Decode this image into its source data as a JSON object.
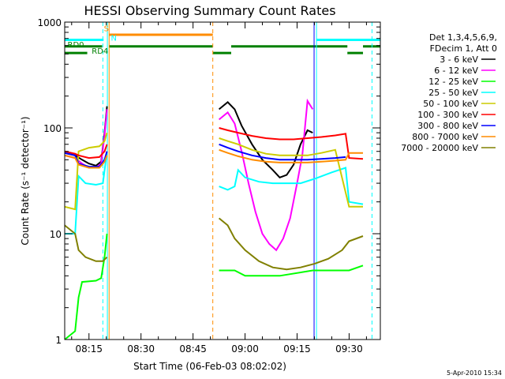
{
  "chart_data": {
    "type": "line",
    "title": "HESSI Observing Summary Count Rates",
    "xlabel": "Start Time (06-Feb-03 08:02:02)",
    "ylabel": "Count Rate (s⁻¹ detector⁻¹)",
    "yscale": "log",
    "ylim": [
      1,
      1000
    ],
    "xlim_minutes": [
      8.0,
      99.0
    ],
    "xticks": [
      {
        "minute": 15,
        "label": "08:15"
      },
      {
        "minute": 30,
        "label": "08:30"
      },
      {
        "minute": 45,
        "label": "08:45"
      },
      {
        "minute": 60,
        "label": "09:00"
      },
      {
        "minute": 75,
        "label": "09:15"
      },
      {
        "minute": 90,
        "label": "09:30"
      }
    ],
    "yticks": [
      {
        "value": 1,
        "label": "1"
      },
      {
        "value": 10,
        "label": "10"
      },
      {
        "value": 100,
        "label": "100"
      },
      {
        "value": 1000,
        "label": "1000"
      }
    ],
    "legend_header": [
      "Det 1,3,4,5,6,9,",
      "FDecim 1, Att 0"
    ],
    "legend_position": "right",
    "gaps_minutes": [
      [
        20.5,
        52.5
      ]
    ],
    "series": [
      {
        "name": "3 - 6 keV",
        "color": "#000000",
        "points": [
          [
            8,
            58
          ],
          [
            11,
            55
          ],
          [
            13,
            50
          ],
          [
            15,
            46
          ],
          [
            17,
            44
          ],
          [
            18.5,
            48
          ],
          [
            19.5,
            90
          ],
          [
            20.2,
            160
          ],
          [
            52.5,
            150
          ],
          [
            55,
            175
          ],
          [
            57,
            150
          ],
          [
            59,
            105
          ],
          [
            62,
            70
          ],
          [
            65,
            50
          ],
          [
            68,
            40
          ],
          [
            70,
            34
          ],
          [
            72,
            36
          ],
          [
            74,
            45
          ],
          [
            76,
            70
          ],
          [
            78,
            95
          ],
          [
            79.5,
            90
          ]
        ]
      },
      {
        "name": "6 - 12 keV",
        "color": "#ff00ff",
        "points": [
          [
            8,
            55
          ],
          [
            11,
            52
          ],
          [
            13,
            46
          ],
          [
            15,
            42
          ],
          [
            17,
            42
          ],
          [
            18.5,
            46
          ],
          [
            19.5,
            85
          ],
          [
            20.2,
            150
          ],
          [
            52.5,
            120
          ],
          [
            55,
            140
          ],
          [
            57,
            110
          ],
          [
            59,
            60
          ],
          [
            61,
            30
          ],
          [
            63,
            16
          ],
          [
            65,
            10
          ],
          [
            67,
            8
          ],
          [
            69,
            7
          ],
          [
            71,
            9
          ],
          [
            73,
            14
          ],
          [
            75,
            30
          ],
          [
            76.5,
            55
          ],
          [
            78,
            180
          ],
          [
            79.5,
            150
          ]
        ]
      },
      {
        "name": "12 - 25 keV",
        "color": "#00ff00",
        "points": [
          [
            8,
            1
          ],
          [
            11,
            1.2
          ],
          [
            12,
            2.5
          ],
          [
            13,
            3.5
          ],
          [
            17,
            3.6
          ],
          [
            18.5,
            3.8
          ],
          [
            19.5,
            6
          ],
          [
            20.2,
            10
          ],
          [
            52.5,
            4.5
          ],
          [
            57,
            4.5
          ],
          [
            60,
            4
          ],
          [
            70,
            4
          ],
          [
            79.5,
            4.5
          ],
          [
            90,
            4.5
          ],
          [
            94,
            5
          ]
        ]
      },
      {
        "name": "25 - 50 keV",
        "color": "#00ffff",
        "points": [
          [
            8,
            10
          ],
          [
            11,
            10
          ],
          [
            12,
            35
          ],
          [
            14,
            30
          ],
          [
            17,
            29
          ],
          [
            19,
            30
          ],
          [
            20.2,
            60
          ],
          [
            52.5,
            28
          ],
          [
            55,
            26
          ],
          [
            57,
            28
          ],
          [
            58,
            40
          ],
          [
            60,
            34
          ],
          [
            64,
            31
          ],
          [
            68,
            30
          ],
          [
            72,
            30
          ],
          [
            76,
            30
          ],
          [
            80,
            33
          ],
          [
            85,
            38
          ],
          [
            89,
            42
          ],
          [
            90,
            20
          ],
          [
            94,
            19
          ]
        ]
      },
      {
        "name": "50 - 100 keV",
        "color": "#cccc00",
        "points": [
          [
            8,
            18
          ],
          [
            11,
            17
          ],
          [
            12,
            60
          ],
          [
            15,
            65
          ],
          [
            18,
            67
          ],
          [
            19.5,
            75
          ],
          [
            20.2,
            90
          ],
          [
            52.5,
            80
          ],
          [
            55,
            75
          ],
          [
            58,
            70
          ],
          [
            62,
            62
          ],
          [
            66,
            57
          ],
          [
            70,
            55
          ],
          [
            74,
            55
          ],
          [
            78,
            55
          ],
          [
            82,
            58
          ],
          [
            86,
            62
          ],
          [
            90,
            18
          ],
          [
            94,
            18
          ]
        ]
      },
      {
        "name": "100 - 300 keV",
        "color": "#ff0000",
        "points": [
          [
            8,
            60
          ],
          [
            11,
            57
          ],
          [
            12,
            55
          ],
          [
            15,
            52
          ],
          [
            18,
            53
          ],
          [
            19.5,
            60
          ],
          [
            20.2,
            70
          ],
          [
            52.5,
            100
          ],
          [
            55,
            95
          ],
          [
            58,
            90
          ],
          [
            62,
            84
          ],
          [
            66,
            80
          ],
          [
            70,
            78
          ],
          [
            74,
            78
          ],
          [
            78,
            80
          ],
          [
            82,
            82
          ],
          [
            86,
            85
          ],
          [
            89,
            88
          ],
          [
            90,
            52
          ],
          [
            94,
            51
          ]
        ]
      },
      {
        "name": "300 - 800 keV",
        "color": "#0000ff",
        "points": [
          [
            8,
            58
          ],
          [
            11,
            55
          ],
          [
            12,
            46
          ],
          [
            15,
            43
          ],
          [
            18,
            43
          ],
          [
            19.5,
            50
          ],
          [
            20.2,
            60
          ],
          [
            52.5,
            70
          ],
          [
            55,
            65
          ],
          [
            58,
            60
          ],
          [
            62,
            55
          ],
          [
            66,
            52
          ],
          [
            70,
            50
          ],
          [
            74,
            50
          ],
          [
            78,
            50
          ],
          [
            82,
            51
          ],
          [
            86,
            52
          ],
          [
            89,
            53
          ]
        ]
      },
      {
        "name": "800 - 7000 keV",
        "color": "#ff8c00",
        "points": [
          [
            8,
            55
          ],
          [
            11,
            52
          ],
          [
            12,
            45
          ],
          [
            15,
            42
          ],
          [
            18,
            42
          ],
          [
            19.5,
            48
          ],
          [
            20.2,
            55
          ],
          [
            52.5,
            62
          ],
          [
            55,
            58
          ],
          [
            58,
            54
          ],
          [
            62,
            50
          ],
          [
            66,
            48
          ],
          [
            70,
            47
          ],
          [
            74,
            47
          ],
          [
            78,
            47
          ],
          [
            82,
            48
          ],
          [
            86,
            49
          ],
          [
            89,
            50
          ],
          [
            90,
            58
          ],
          [
            94,
            58
          ]
        ]
      },
      {
        "name": "7000 - 20000 keV",
        "color": "#808000",
        "points": [
          [
            8,
            12
          ],
          [
            11,
            10
          ],
          [
            12,
            7
          ],
          [
            14,
            6
          ],
          [
            17,
            5.5
          ],
          [
            19,
            5.5
          ],
          [
            20.2,
            6
          ],
          [
            52.5,
            14
          ],
          [
            55,
            12
          ],
          [
            57,
            9
          ],
          [
            60,
            7
          ],
          [
            64,
            5.5
          ],
          [
            68,
            4.8
          ],
          [
            72,
            4.6
          ],
          [
            76,
            4.8
          ],
          [
            80,
            5.2
          ],
          [
            84,
            5.8
          ],
          [
            88,
            7
          ],
          [
            90,
            8.5
          ],
          [
            94,
            9.5
          ]
        ]
      }
    ],
    "vertical_lines": [
      {
        "minute": 19.0,
        "color": "#00ffff",
        "style": "dashed"
      },
      {
        "minute": 20.3,
        "color": "#00ffff",
        "style": "solid"
      },
      {
        "minute": 20.8,
        "color": "#ff8c00",
        "style": "solid"
      },
      {
        "minute": 50.7,
        "color": "#ff8c00",
        "style": "dashed"
      },
      {
        "minute": 79.9,
        "color": "#0000ff",
        "style": "solid"
      },
      {
        "minute": 80.6,
        "color": "#00ffff",
        "style": "solid"
      },
      {
        "minute": 96.6,
        "color": "#00ffff",
        "style": "dashed"
      }
    ],
    "flag_bars": [
      {
        "segments": [
          [
            8,
            19.2
          ],
          [
            80.6,
            99
          ]
        ],
        "level": 680,
        "color": "#00ffff"
      },
      {
        "segments": [
          [
            20.8,
            50.7
          ]
        ],
        "level": 760,
        "color": "#ff8c00"
      },
      {
        "segments": [
          [
            8,
            18.8
          ],
          [
            20.8,
            50.7
          ],
          [
            56,
            89.5
          ],
          [
            94,
            99
          ]
        ],
        "level": 590,
        "color": "#008000"
      },
      {
        "segments": [
          [
            8,
            14.5
          ],
          [
            50.7,
            56
          ],
          [
            89.5,
            94
          ]
        ],
        "level": 510,
        "color": "#008000"
      }
    ],
    "flag_labels": [
      {
        "text": "S",
        "color": "#ff8c00",
        "minute": 19.3,
        "value": 820
      },
      {
        "text": "N",
        "color": "#00ffff",
        "minute": 21.3,
        "value": 670
      },
      {
        "text": "RD0",
        "color": "#008000",
        "minute": 8.8,
        "value": 575
      },
      {
        "text": "RD4",
        "color": "#008000",
        "minute": 15.8,
        "value": 505
      }
    ]
  },
  "timestamp": "5-Apr-2010 15:34"
}
